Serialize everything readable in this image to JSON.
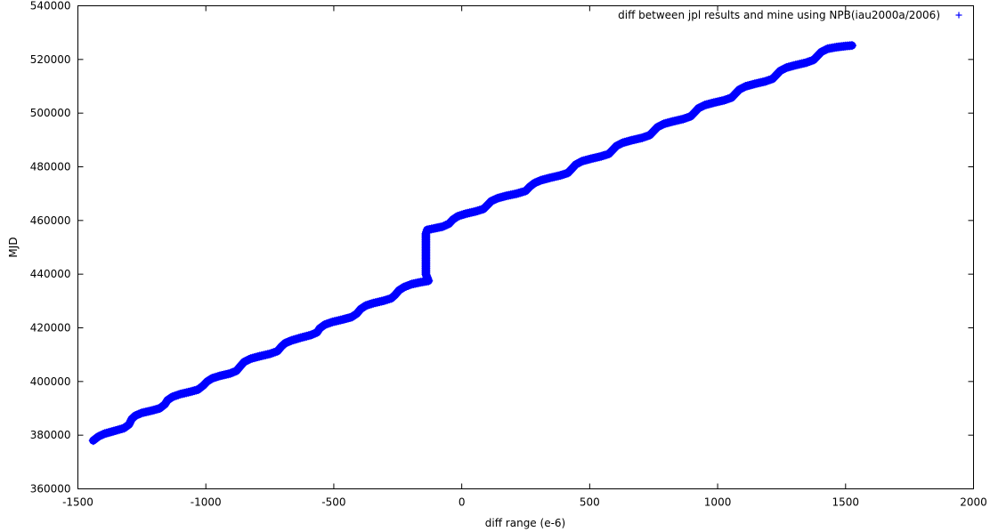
{
  "chart_data": {
    "type": "scatter",
    "xlabel": "diff range (e-6)",
    "ylabel": "MJD",
    "xlim": [
      -1500,
      2000
    ],
    "ylim": [
      360000,
      540000
    ],
    "xticks": [
      -1500,
      -1000,
      -500,
      0,
      500,
      1000,
      1500,
      2000
    ],
    "yticks": [
      360000,
      380000,
      400000,
      420000,
      440000,
      460000,
      480000,
      500000,
      520000,
      540000
    ],
    "grid": false,
    "legend_position": "top-right",
    "series": [
      {
        "name": "diff between jpl results and mine using NPB(iau2000a/2006)",
        "marker": "+",
        "color": "#0000ff",
        "points": [
          [
            -1440,
            378000
          ],
          [
            -1420,
            379500
          ],
          [
            -1395,
            380600
          ],
          [
            -1360,
            381500
          ],
          [
            -1320,
            382600
          ],
          [
            -1300,
            384000
          ],
          [
            -1290,
            386000
          ],
          [
            -1275,
            387300
          ],
          [
            -1250,
            388300
          ],
          [
            -1210,
            389200
          ],
          [
            -1180,
            390000
          ],
          [
            -1160,
            391500
          ],
          [
            -1150,
            393000
          ],
          [
            -1130,
            394300
          ],
          [
            -1100,
            395300
          ],
          [
            -1060,
            396200
          ],
          [
            -1030,
            397000
          ],
          [
            -1010,
            398500
          ],
          [
            -995,
            400000
          ],
          [
            -975,
            401200
          ],
          [
            -945,
            402100
          ],
          [
            -905,
            403000
          ],
          [
            -880,
            404000
          ],
          [
            -865,
            405700
          ],
          [
            -850,
            407300
          ],
          [
            -825,
            408500
          ],
          [
            -790,
            409400
          ],
          [
            -750,
            410300
          ],
          [
            -720,
            411300
          ],
          [
            -705,
            413000
          ],
          [
            -690,
            414300
          ],
          [
            -665,
            415300
          ],
          [
            -630,
            416300
          ],
          [
            -590,
            417300
          ],
          [
            -565,
            418300
          ],
          [
            -555,
            419800
          ],
          [
            -535,
            421200
          ],
          [
            -505,
            422200
          ],
          [
            -465,
            423100
          ],
          [
            -430,
            424000
          ],
          [
            -410,
            425300
          ],
          [
            -395,
            427000
          ],
          [
            -375,
            428300
          ],
          [
            -345,
            429200
          ],
          [
            -305,
            430100
          ],
          [
            -275,
            431000
          ],
          [
            -260,
            432300
          ],
          [
            -245,
            434000
          ],
          [
            -225,
            435200
          ],
          [
            -195,
            436300
          ],
          [
            -160,
            437000
          ],
          [
            -130,
            437500
          ],
          [
            -140,
            440000
          ],
          [
            -140,
            443000
          ],
          [
            -140,
            446000
          ],
          [
            -140,
            449000
          ],
          [
            -140,
            452000
          ],
          [
            -140,
            455000
          ],
          [
            -135,
            456500
          ],
          [
            -110,
            457000
          ],
          [
            -75,
            457700
          ],
          [
            -50,
            458800
          ],
          [
            -35,
            460300
          ],
          [
            -15,
            461600
          ],
          [
            15,
            462500
          ],
          [
            55,
            463400
          ],
          [
            85,
            464300
          ],
          [
            100,
            465700
          ],
          [
            115,
            467200
          ],
          [
            140,
            468300
          ],
          [
            175,
            469200
          ],
          [
            215,
            470000
          ],
          [
            250,
            471000
          ],
          [
            265,
            472500
          ],
          [
            285,
            474000
          ],
          [
            310,
            475000
          ],
          [
            345,
            475900
          ],
          [
            385,
            476800
          ],
          [
            415,
            477700
          ],
          [
            430,
            479200
          ],
          [
            445,
            480800
          ],
          [
            470,
            482100
          ],
          [
            505,
            483000
          ],
          [
            545,
            483900
          ],
          [
            575,
            484800
          ],
          [
            590,
            486300
          ],
          [
            605,
            487800
          ],
          [
            630,
            489000
          ],
          [
            665,
            489900
          ],
          [
            705,
            490800
          ],
          [
            735,
            491800
          ],
          [
            750,
            493300
          ],
          [
            765,
            494800
          ],
          [
            790,
            496000
          ],
          [
            825,
            496900
          ],
          [
            865,
            497800
          ],
          [
            895,
            498800
          ],
          [
            910,
            500300
          ],
          [
            925,
            501800
          ],
          [
            950,
            503000
          ],
          [
            985,
            503900
          ],
          [
            1025,
            504800
          ],
          [
            1055,
            505800
          ],
          [
            1070,
            507300
          ],
          [
            1085,
            508800
          ],
          [
            1110,
            510000
          ],
          [
            1145,
            510900
          ],
          [
            1185,
            511800
          ],
          [
            1215,
            512800
          ],
          [
            1230,
            514300
          ],
          [
            1245,
            515800
          ],
          [
            1270,
            517000
          ],
          [
            1305,
            517900
          ],
          [
            1345,
            518800
          ],
          [
            1375,
            519800
          ],
          [
            1390,
            521300
          ],
          [
            1405,
            522800
          ],
          [
            1430,
            524000
          ],
          [
            1465,
            524600
          ],
          [
            1500,
            525000
          ],
          [
            1525,
            525200
          ]
        ]
      }
    ]
  }
}
